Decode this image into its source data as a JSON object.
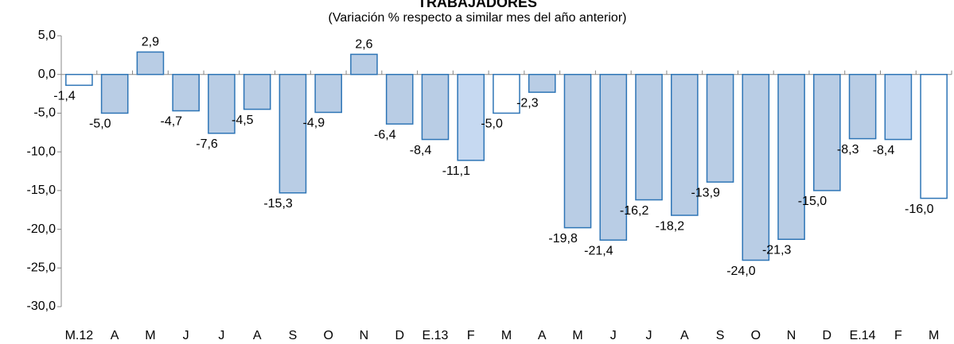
{
  "chart_data": {
    "type": "bar",
    "title": "TRABAJADORES",
    "subtitle": "(Variación % respecto a similar mes del año anterior)",
    "categories": [
      "M.12",
      "A",
      "M",
      "J",
      "J",
      "A",
      "S",
      "O",
      "N",
      "D",
      "E.13",
      "F",
      "M",
      "A",
      "M",
      "J",
      "J",
      "A",
      "S",
      "O",
      "N",
      "D",
      "E.14",
      "F",
      "M"
    ],
    "values": [
      -1.4,
      -5.0,
      2.9,
      -4.7,
      -7.6,
      -4.5,
      -15.3,
      -4.9,
      2.6,
      -6.4,
      -8.4,
      -11.1,
      -5.0,
      -2.3,
      -19.8,
      -21.4,
      -16.2,
      -18.2,
      -13.9,
      -24.0,
      -21.3,
      -15.0,
      -8.3,
      -8.4,
      -16.0
    ],
    "value_labels": [
      "-1,4",
      "-5,0",
      "2,9",
      "-4,7",
      "-7,6",
      "-4,5",
      "-15,3",
      "-4,9",
      "2,6",
      "-6,4",
      "-8,4",
      "-11,1",
      "-5,0",
      "-2,3",
      "-19,8",
      "-21,4",
      "-16,2",
      "-18,2",
      "-13,9",
      "-24,0",
      "-21,3",
      "-15,0",
      "-8,3",
      "-8,4",
      "-16,0"
    ],
    "colors": [
      "#ffffff",
      "#b9cde5",
      "#b9cde5",
      "#b9cde5",
      "#b9cde5",
      "#b9cde5",
      "#b9cde5",
      "#b9cde5",
      "#b9cde5",
      "#b9cde5",
      "#b9cde5",
      "#c6d9f1",
      "#ffffff",
      "#b9cde5",
      "#b9cde5",
      "#b9cde5",
      "#b9cde5",
      "#b9cde5",
      "#b9cde5",
      "#b9cde5",
      "#b9cde5",
      "#b9cde5",
      "#b9cde5",
      "#c6d9f1",
      "#ffffff"
    ],
    "edge_color": "#2e75b6",
    "ylim": [
      -30,
      5
    ],
    "yticks": [
      {
        "value": -30,
        "label": "-30,0"
      },
      {
        "value": -25,
        "label": "-25,0"
      },
      {
        "value": -20,
        "label": "-20,0"
      },
      {
        "value": -15,
        "label": "-15,0"
      },
      {
        "value": -10,
        "label": "-10,0"
      },
      {
        "value": -5,
        "label": "-5,0"
      },
      {
        "value": 0,
        "label": "0,0"
      },
      {
        "value": 5,
        "label": "5,0"
      }
    ],
    "grid": false
  }
}
